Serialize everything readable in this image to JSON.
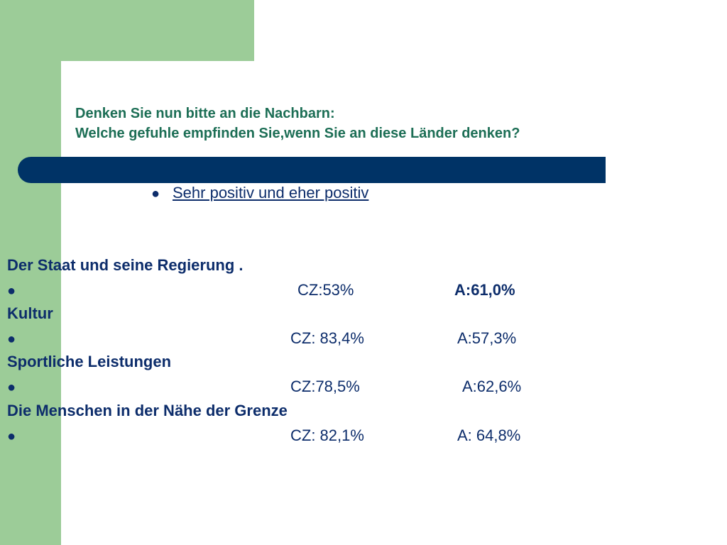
{
  "slide": {
    "title_line1": "Denken Sie nun bitte an die Nachbarn:",
    "title_line2": "Welche gefuhle empfinden Sie,wenn Sie an diese Länder denken?",
    "bullet_text": "Sehr positiv und eher positiv"
  },
  "items": [
    {
      "category": "Der Staat und seine Regierung .",
      "bullet": "●",
      "cz": "CZ:53%",
      "a": "A:61,0%"
    },
    {
      "category": "Kultur",
      "bullet": "●",
      "cz": "CZ: 83,4%",
      "a": "A:57,3%"
    },
    {
      "category": "Sportliche Leistungen",
      "bullet": "●",
      "cz": "CZ:78,5%",
      "a": "A:62,6%"
    },
    {
      "category": "Die Menschen in der Nähe der Grenze",
      "bullet": "●",
      "cz": "CZ: 82,1%",
      "a": "A: 64,8%"
    }
  ],
  "colors": {
    "green": "#9ccc98",
    "navy_bar": "#003366",
    "title_green": "#1c6e55",
    "text_navy": "#0d2d6b"
  }
}
